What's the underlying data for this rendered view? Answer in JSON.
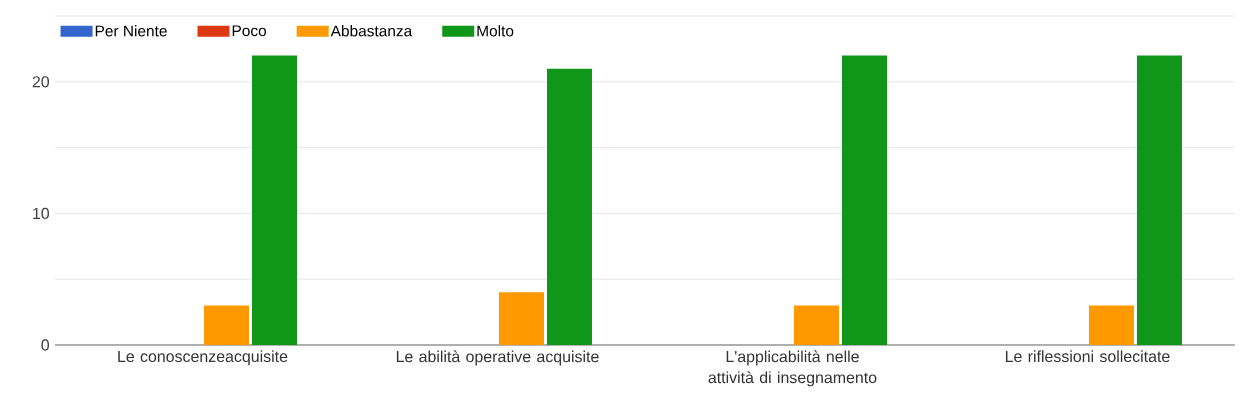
{
  "chart_data": {
    "type": "bar",
    "categories": [
      "Le conoscenzeacquisite",
      "Le abilità operative acquisite",
      "L'applicabilità nelle attività di insegnamento",
      "Le riflessioni sollecitate"
    ],
    "series": [
      {
        "name": "Per Niente",
        "color": "#3366cc",
        "values": [
          0,
          0,
          0,
          0
        ]
      },
      {
        "name": "Poco",
        "color": "#dc3912",
        "values": [
          0,
          0,
          0,
          0
        ]
      },
      {
        "name": "Abbastanza",
        "color": "#ff9900",
        "values": [
          3,
          4,
          3,
          3
        ]
      },
      {
        "name": "Molto",
        "color": "#109618",
        "values": [
          22,
          21,
          22,
          22
        ]
      }
    ],
    "ylim": [
      0,
      25
    ],
    "yticks": [
      0,
      {
        "value": 5,
        "label": null
      },
      10,
      {
        "value": 15,
        "label": null
      },
      20,
      {
        "value": 25,
        "label": null
      }
    ],
    "grid": "y",
    "legend": "top left"
  }
}
